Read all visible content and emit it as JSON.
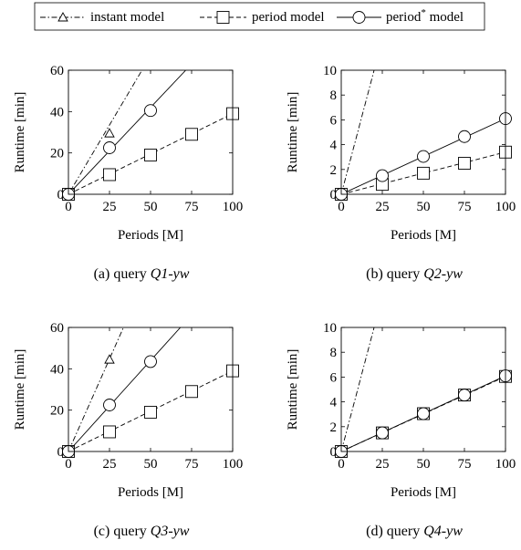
{
  "legend": {
    "entries": [
      {
        "label": "instant model",
        "marker": "triangle",
        "dash": "dashdot"
      },
      {
        "label": "period model",
        "marker": "square",
        "dash": "dashed"
      },
      {
        "label": "period",
        "sup": "*",
        "label_suffix": " model",
        "marker": "circle",
        "dash": "solid"
      }
    ]
  },
  "chart_data": [
    {
      "type": "line",
      "caption_prefix": "(a)  query ",
      "caption_query": "Q1-yw",
      "xlabel": "Periods [M]",
      "ylabel": "Runtime [min]",
      "xlim": [
        0,
        100
      ],
      "ylim": [
        0,
        60
      ],
      "xticks": [
        0,
        25,
        50,
        75,
        100
      ],
      "yticks": [
        0,
        20,
        40,
        60
      ],
      "grid": false,
      "series": [
        {
          "name": "instant model",
          "x": [
            0,
            25
          ],
          "y": [
            0,
            29.5
          ],
          "line_slope": 1.34
        },
        {
          "name": "period model",
          "x": [
            0,
            25,
            50,
            75,
            100
          ],
          "y": [
            0,
            9.5,
            19,
            29,
            39
          ],
          "line_slope": 0.39
        },
        {
          "name": "period* model",
          "x": [
            0,
            25,
            50
          ],
          "y": [
            0,
            22.5,
            40.5
          ],
          "line_slope": 0.84
        }
      ]
    },
    {
      "type": "line",
      "caption_prefix": "(b)  query ",
      "caption_query": "Q2-yw",
      "xlabel": "Periods [M]",
      "ylabel": "Runtime [min]",
      "xlim": [
        0,
        100
      ],
      "ylim": [
        0,
        10
      ],
      "xticks": [
        0,
        25,
        50,
        75,
        100
      ],
      "yticks": [
        0,
        2,
        4,
        6,
        8,
        10
      ],
      "grid": false,
      "series": [
        {
          "name": "instant model",
          "x": [
            0
          ],
          "y": [
            0
          ],
          "line_slope": 0.5
        },
        {
          "name": "period model",
          "x": [
            0,
            25,
            50,
            75,
            100
          ],
          "y": [
            0,
            0.8,
            1.7,
            2.5,
            3.4
          ],
          "line_slope": 0.034
        },
        {
          "name": "period* model",
          "x": [
            0,
            25,
            50,
            75,
            100
          ],
          "y": [
            0,
            1.5,
            3.05,
            4.65,
            6.1
          ],
          "line_slope": 0.061
        }
      ]
    },
    {
      "type": "line",
      "caption_prefix": "(c)  query ",
      "caption_query": "Q3-yw",
      "xlabel": "Periods [M]",
      "ylabel": "Runtime [min]",
      "xlim": [
        0,
        100
      ],
      "ylim": [
        0,
        60
      ],
      "xticks": [
        0,
        25,
        50,
        75,
        100
      ],
      "yticks": [
        0,
        20,
        40,
        60
      ],
      "grid": false,
      "series": [
        {
          "name": "instant model",
          "x": [
            0,
            25
          ],
          "y": [
            0,
            44.5
          ],
          "line_slope": 1.79
        },
        {
          "name": "period model",
          "x": [
            0,
            25,
            50,
            75,
            100
          ],
          "y": [
            0,
            9.5,
            19,
            29,
            39
          ],
          "line_slope": 0.39
        },
        {
          "name": "period* model",
          "x": [
            0,
            25,
            50
          ],
          "y": [
            0,
            22.5,
            43.5
          ],
          "line_slope": 0.88
        }
      ]
    },
    {
      "type": "line",
      "caption_prefix": "(d)  query ",
      "caption_query": "Q4-yw",
      "xlabel": "Periods [M]",
      "ylabel": "Runtime [min]",
      "xlim": [
        0,
        100
      ],
      "ylim": [
        0,
        10
      ],
      "xticks": [
        0,
        25,
        50,
        75,
        100
      ],
      "yticks": [
        0,
        2,
        4,
        6,
        8,
        10
      ],
      "grid": false,
      "series": [
        {
          "name": "instant model",
          "x": [
            0
          ],
          "y": [
            0
          ],
          "line_slope": 0.5
        },
        {
          "name": "period model",
          "x": [
            0,
            25,
            50,
            75,
            100
          ],
          "y": [
            0,
            1.5,
            3.05,
            4.55,
            6.05
          ],
          "line_slope": 0.0605
        },
        {
          "name": "period* model",
          "x": [
            0,
            25,
            50,
            75,
            100
          ],
          "y": [
            0,
            1.5,
            3.05,
            4.55,
            6.1
          ],
          "line_slope": 0.061
        }
      ]
    }
  ]
}
